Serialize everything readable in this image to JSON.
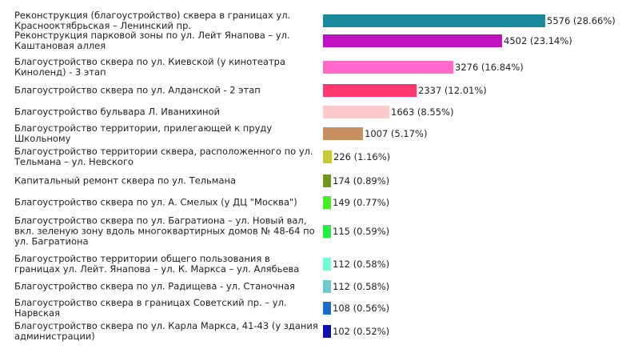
{
  "chart_data": {
    "type": "bar",
    "orientation": "horizontal",
    "title": "",
    "xlabel": "",
    "ylabel": "",
    "grid": false,
    "legend": "none",
    "categories": [
      "Реконструкция (благоустройство) сквера в границах ул. Краснооктябрьская – Ленинский пр.",
      "Реконструкция парковой зоны по ул. Лейт Янапова – ул. Каштановая аллея",
      "Благоустройство сквера по ул. Киевской (у кинотеатра Киноленд) - 3 этап",
      "Благоустройство сквера по ул. Алданской - 2 этап",
      "Благоустройство бульвара Л. Иванихиной",
      "Благоустройство территории, прилегающей к пруду Школьному",
      "Благоустройство территории сквера, расположенного по ул. Тельмана – ул. Невского",
      "Капитальный ремонт сквера по ул. Тельмана",
      "Благоустройство сквера по ул. А. Смелых (у ДЦ \"Москва\")",
      "Благоустройство сквера по ул. Багратиона – ул. Новый вал, вкл. зеленую зону вдоль многоквартирных домов № 48-64 по ул. Багратиона",
      "Благоустройство территории общего пользования в границах ул. Лейт. Янапова – ул. К. Маркса – ул. Алябьева",
      "Благоустройство сквера по ул. Радищева - ул. Станочная",
      "Благоустройство сквера в границах Советский пр. – ул. Нарвская",
      "Благоустройство сквера по ул. Карла Маркса, 41-43 (у здания администрации)"
    ],
    "values": [
      5576,
      4502,
      3276,
      2337,
      1663,
      1007,
      226,
      174,
      149,
      115,
      112,
      112,
      108,
      102
    ],
    "value_labels": [
      "5576 (28.66%)",
      "4502 (23.14%)",
      "3276 (16.84%)",
      "2337 (12.01%)",
      "1663 (8.55%)",
      "1007 (5.17%)",
      "226 (1.16%)",
      "174 (0.89%)",
      "149 (0.77%)",
      "115 (0.59%)",
      "112 (0.58%)",
      "112 (0.58%)",
      "108 (0.56%)",
      "102 (0.52%)"
    ],
    "colors": [
      "#1a8a9c",
      "#c010c0",
      "#ff6ac8",
      "#ff3870",
      "#ffc8c8",
      "#c89060",
      "#c8c838",
      "#70981a",
      "#44ee22",
      "#22ee44",
      "#70ffd0",
      "#70c8d0",
      "#1a6ec8",
      "#1010b0"
    ]
  }
}
